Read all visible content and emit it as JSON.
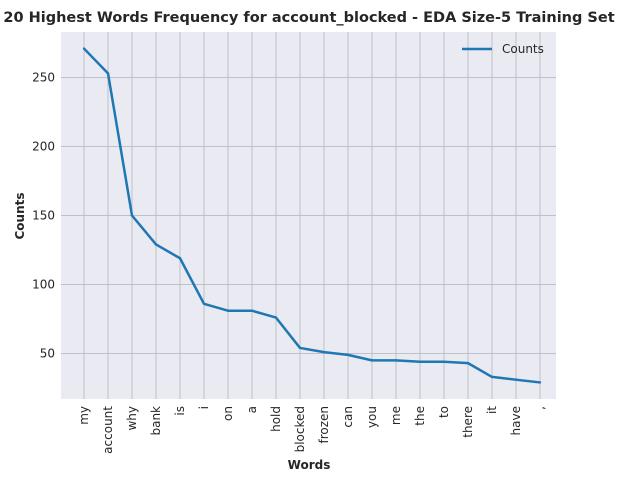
{
  "chart_data": {
    "type": "line",
    "title": "20 Highest Words Frequency for account_blocked - EDA Size-5 Training Set",
    "xlabel": "Words",
    "ylabel": "Counts",
    "categories": [
      "my",
      "account",
      "why",
      "bank",
      "is",
      "i",
      "on",
      "a",
      "hold",
      "blocked",
      "frozen",
      "can",
      "you",
      "me",
      "the",
      "to",
      "there",
      "it",
      "have",
      ","
    ],
    "series": [
      {
        "name": "Counts",
        "color": "#1f77b4",
        "values": [
          271,
          253,
          150,
          129,
          119,
          86,
          81,
          81,
          76,
          54,
          51,
          49,
          45,
          45,
          44,
          44,
          43,
          33,
          31,
          29
        ]
      }
    ],
    "yticks": [
      50,
      100,
      150,
      200,
      250
    ],
    "ylim": [
      17,
      283
    ],
    "grid": true,
    "legend_position": "top-right",
    "background_color": "#eaeaf2",
    "grid_color": "#c0c0c8"
  }
}
